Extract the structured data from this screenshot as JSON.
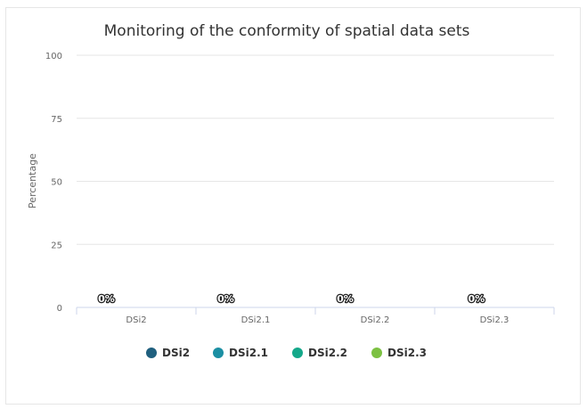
{
  "chart_data": {
    "type": "bar",
    "title": "Monitoring of the conformity of spatial data sets",
    "ylabel": "Percentage",
    "xlabel": "",
    "ylim": [
      0,
      100
    ],
    "yticks": [
      0,
      25,
      50,
      75,
      100
    ],
    "categories": [
      "DSi2",
      "DSi2.1",
      "DSi2.2",
      "DSi2.3"
    ],
    "values": [
      0,
      0,
      0,
      0
    ],
    "data_labels": [
      "0%",
      "0%",
      "0%",
      "0%"
    ],
    "grid": true,
    "legend_position": "bottom",
    "series": [
      {
        "name": "DSi2",
        "color": "#1f5f7e"
      },
      {
        "name": "DSi2.1",
        "color": "#1b8fa3"
      },
      {
        "name": "DSi2.2",
        "color": "#14a88a"
      },
      {
        "name": "DSi2.3",
        "color": "#7cc142"
      }
    ]
  }
}
